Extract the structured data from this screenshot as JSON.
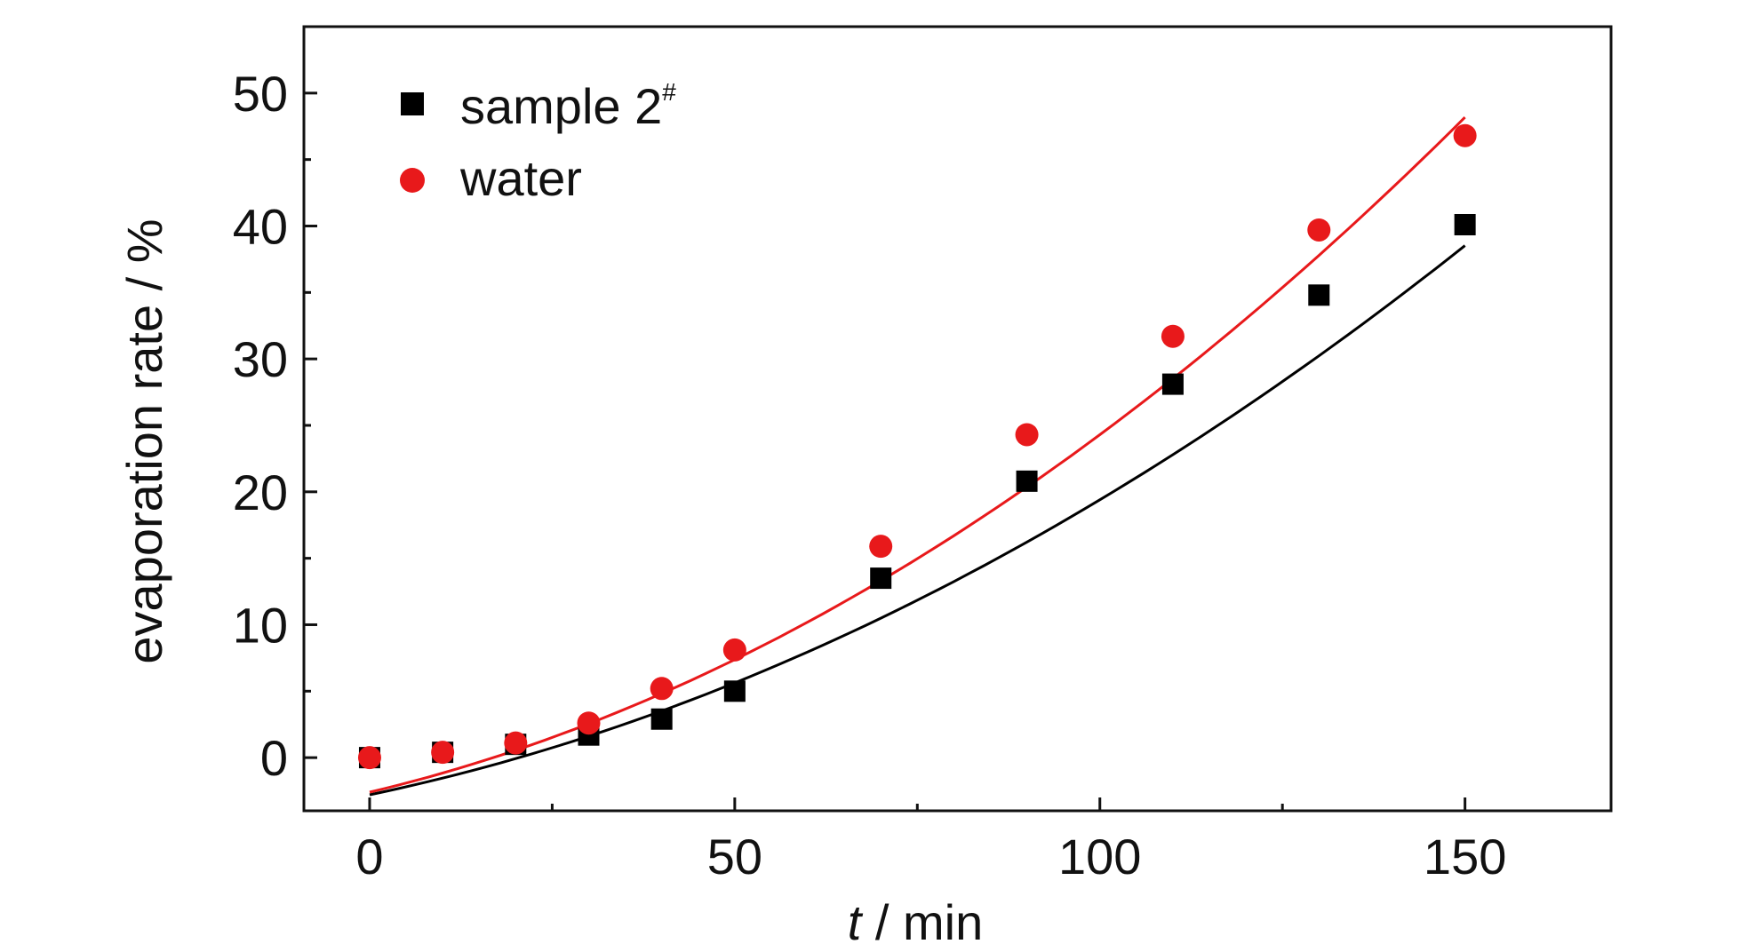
{
  "chart_data": {
    "type": "scatter",
    "xlabel_italic": "t",
    "xlabel_rest": " / min",
    "ylabel": "evaporation rate / %",
    "xlim": [
      -9,
      170
    ],
    "ylim": [
      -4,
      55
    ],
    "x_ticks": [
      0,
      50,
      100,
      150
    ],
    "y_ticks": [
      0,
      10,
      20,
      30,
      40,
      50
    ],
    "legend_position": "top-left",
    "grid": false,
    "series": [
      {
        "name": "sample 2",
        "name_superscript": "#",
        "marker": "square",
        "color": "#000000",
        "x": [
          0,
          10,
          20,
          30,
          40,
          50,
          70,
          90,
          110,
          130,
          150
        ],
        "y": [
          0,
          0.4,
          1.0,
          1.7,
          2.9,
          5.0,
          13.5,
          20.8,
          28.1,
          34.8,
          40.1
        ],
        "fit": [
          -2.8,
          0.115,
          0.00107
        ]
      },
      {
        "name": "water",
        "marker": "circle",
        "color": "#e8191b",
        "x": [
          0,
          10,
          20,
          30,
          40,
          50,
          70,
          90,
          110,
          130,
          150
        ],
        "y": [
          0,
          0.4,
          1.1,
          2.6,
          5.2,
          8.1,
          15.9,
          24.3,
          31.7,
          39.7,
          46.8
        ],
        "fit": [
          -2.6,
          0.13,
          0.00139
        ]
      }
    ]
  }
}
